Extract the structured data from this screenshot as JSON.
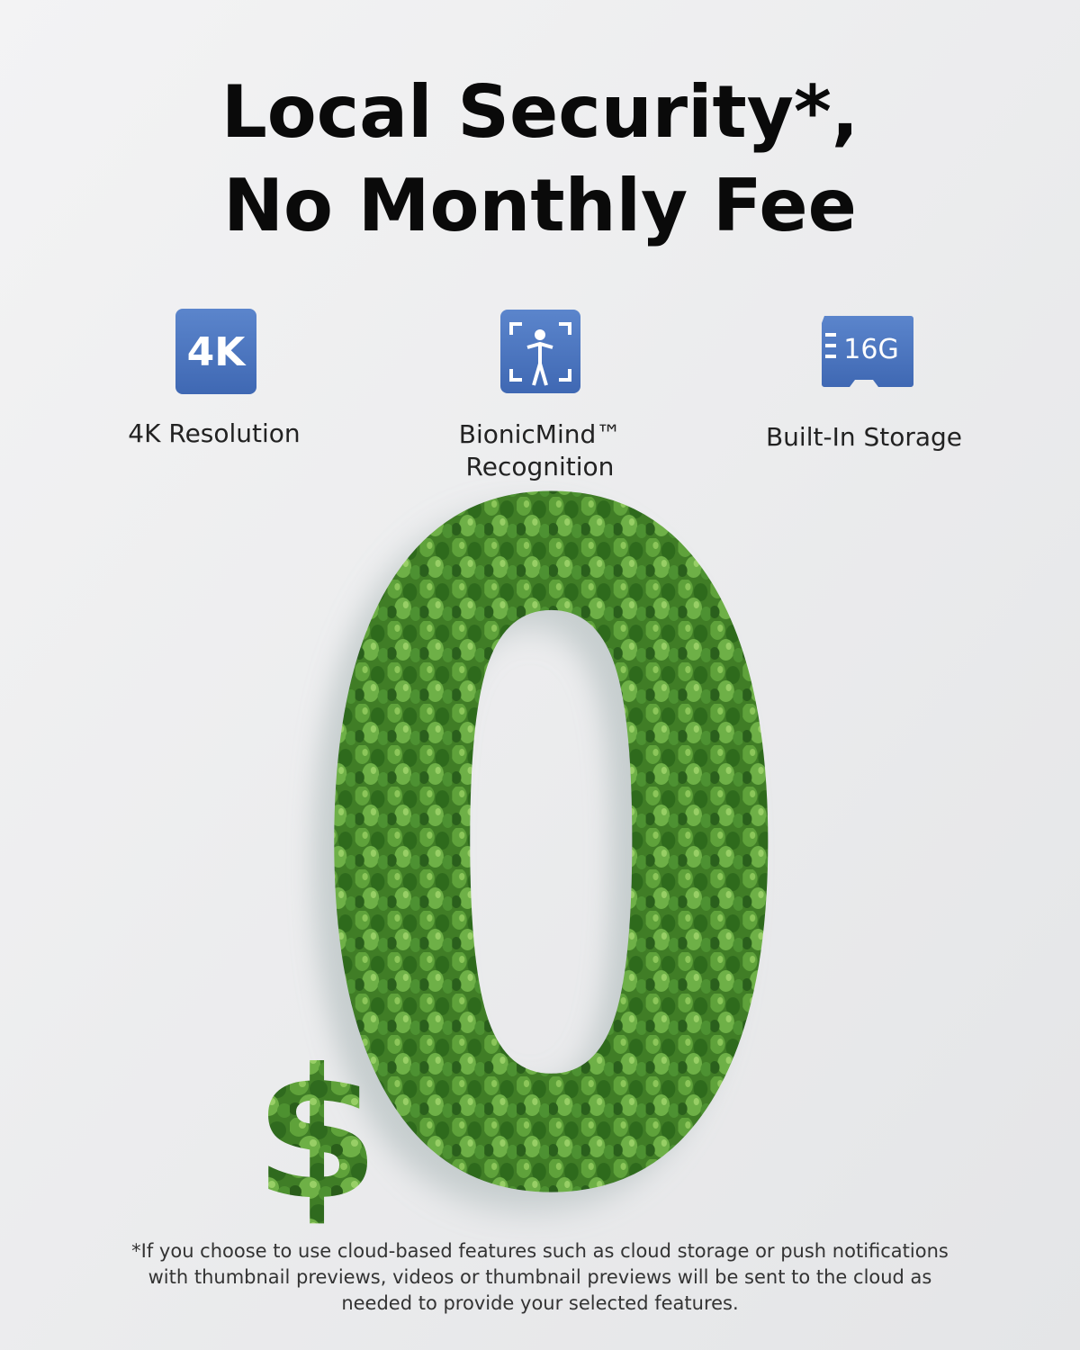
{
  "header": {
    "title": [
      "Local Security*,",
      "No Monthly Fee"
    ]
  },
  "features": [
    {
      "icon_text": "4K",
      "label": [
        "4K Resolution"
      ]
    },
    {
      "label": [
        "BionicMind™",
        "Recognition"
      ]
    },
    {
      "icon_text": "16G",
      "label": [
        "Built-In Storage"
      ]
    }
  ],
  "graphic": {
    "currency": "$",
    "amount": "0"
  },
  "footnote": [
    "*If you choose to use cloud-based features such as cloud storage or push notifications",
    "with thumbnail previews, videos or thumbnail previews will be sent to the cloud as",
    "needed to provide your selected features."
  ]
}
